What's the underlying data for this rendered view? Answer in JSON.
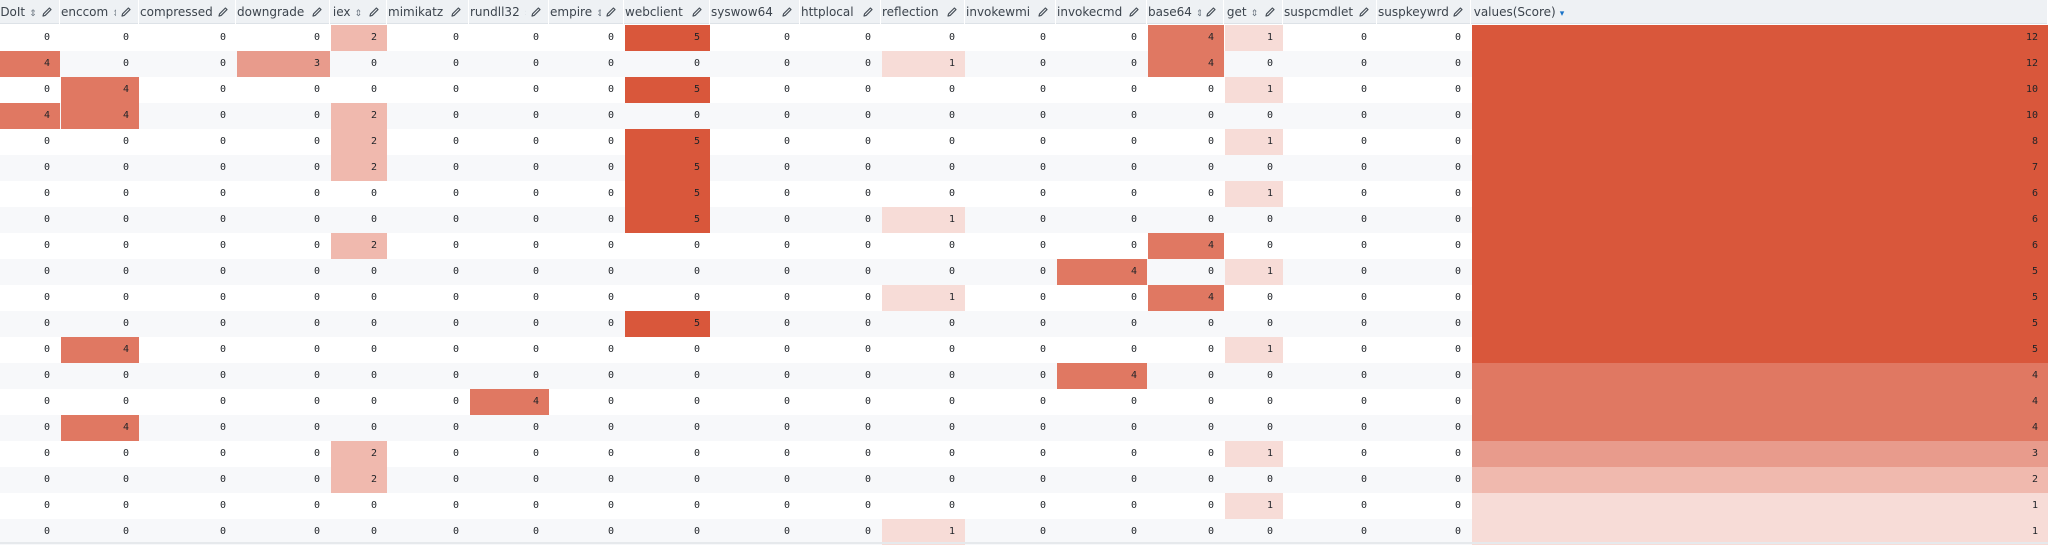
{
  "columns": [
    {
      "label": "DoIt",
      "sort": "⇕"
    },
    {
      "label": "enccom",
      "sort": "⇕"
    },
    {
      "label": "compressed",
      "sort": "⇕"
    },
    {
      "label": "downgrade",
      "sort": "⇕"
    },
    {
      "label": "iex",
      "sort": "⇕"
    },
    {
      "label": "mimikatz",
      "sort": "⇕"
    },
    {
      "label": "rundll32",
      "sort": "⇕"
    },
    {
      "label": "empire",
      "sort": "⇕"
    },
    {
      "label": "webclient",
      "sort": "⇕"
    },
    {
      "label": "syswow64",
      "sort": "⇕"
    },
    {
      "label": "httplocal",
      "sort": "⇕"
    },
    {
      "label": "reflection",
      "sort": "⇕"
    },
    {
      "label": "invokewmi",
      "sort": "⇕"
    },
    {
      "label": "invokecmd",
      "sort": "⇕"
    },
    {
      "label": "base64",
      "sort": "⇕"
    },
    {
      "label": "get",
      "sort": "⇕"
    },
    {
      "label": "suspcmdlet",
      "sort": "⇕"
    },
    {
      "label": "suspkeywrd",
      "sort": "⇕"
    },
    {
      "label": "values(Score)",
      "sort": "▾",
      "sorted": true
    }
  ],
  "rows": [
    [
      "0",
      "0",
      "0",
      "0",
      "2",
      "0",
      "0",
      "0",
      "5",
      "0",
      "0",
      "0",
      "0",
      "0",
      "4",
      "1",
      "0",
      "0",
      "12"
    ],
    [
      "4",
      "0",
      "0",
      "3",
      "0",
      "0",
      "0",
      "0",
      "0",
      "0",
      "0",
      "1",
      "0",
      "0",
      "4",
      "0",
      "0",
      "0",
      "12"
    ],
    [
      "0",
      "4",
      "0",
      "0",
      "0",
      "0",
      "0",
      "0",
      "5",
      "0",
      "0",
      "0",
      "0",
      "0",
      "0",
      "1",
      "0",
      "0",
      "10"
    ],
    [
      "4",
      "4",
      "0",
      "0",
      "2",
      "0",
      "0",
      "0",
      "0",
      "0",
      "0",
      "0",
      "0",
      "0",
      "0",
      "0",
      "0",
      "0",
      "10"
    ],
    [
      "0",
      "0",
      "0",
      "0",
      "2",
      "0",
      "0",
      "0",
      "5",
      "0",
      "0",
      "0",
      "0",
      "0",
      "0",
      "1",
      "0",
      "0",
      "8"
    ],
    [
      "0",
      "0",
      "0",
      "0",
      "2",
      "0",
      "0",
      "0",
      "5",
      "0",
      "0",
      "0",
      "0",
      "0",
      "0",
      "0",
      "0",
      "0",
      "7"
    ],
    [
      "0",
      "0",
      "0",
      "0",
      "0",
      "0",
      "0",
      "0",
      "5",
      "0",
      "0",
      "0",
      "0",
      "0",
      "0",
      "1",
      "0",
      "0",
      "6"
    ],
    [
      "0",
      "0",
      "0",
      "0",
      "0",
      "0",
      "0",
      "0",
      "5",
      "0",
      "0",
      "1",
      "0",
      "0",
      "0",
      "0",
      "0",
      "0",
      "6"
    ],
    [
      "0",
      "0",
      "0",
      "0",
      "2",
      "0",
      "0",
      "0",
      "0",
      "0",
      "0",
      "0",
      "0",
      "0",
      "4",
      "0",
      "0",
      "0",
      "6"
    ],
    [
      "0",
      "0",
      "0",
      "0",
      "0",
      "0",
      "0",
      "0",
      "0",
      "0",
      "0",
      "0",
      "0",
      "4",
      "0",
      "1",
      "0",
      "0",
      "5"
    ],
    [
      "0",
      "0",
      "0",
      "0",
      "0",
      "0",
      "0",
      "0",
      "0",
      "0",
      "0",
      "1",
      "0",
      "0",
      "4",
      "0",
      "0",
      "0",
      "5"
    ],
    [
      "0",
      "0",
      "0",
      "0",
      "0",
      "0",
      "0",
      "0",
      "5",
      "0",
      "0",
      "0",
      "0",
      "0",
      "0",
      "0",
      "0",
      "0",
      "5"
    ],
    [
      "0",
      "4",
      "0",
      "0",
      "0",
      "0",
      "0",
      "0",
      "0",
      "0",
      "0",
      "0",
      "0",
      "0",
      "0",
      "1",
      "0",
      "0",
      "5"
    ],
    [
      "0",
      "0",
      "0",
      "0",
      "0",
      "0",
      "0",
      "0",
      "0",
      "0",
      "0",
      "0",
      "0",
      "4",
      "0",
      "0",
      "0",
      "0",
      "4"
    ],
    [
      "0",
      "0",
      "0",
      "0",
      "0",
      "0",
      "4",
      "0",
      "0",
      "0",
      "0",
      "0",
      "0",
      "0",
      "0",
      "0",
      "0",
      "0",
      "4"
    ],
    [
      "0",
      "4",
      "0",
      "0",
      "0",
      "0",
      "0",
      "0",
      "0",
      "0",
      "0",
      "0",
      "0",
      "0",
      "0",
      "0",
      "0",
      "0",
      "4"
    ],
    [
      "0",
      "0",
      "0",
      "0",
      "2",
      "0",
      "0",
      "0",
      "0",
      "0",
      "0",
      "0",
      "0",
      "0",
      "0",
      "1",
      "0",
      "0",
      "3"
    ],
    [
      "0",
      "0",
      "0",
      "0",
      "2",
      "0",
      "0",
      "0",
      "0",
      "0",
      "0",
      "0",
      "0",
      "0",
      "0",
      "0",
      "0",
      "0",
      "2"
    ],
    [
      "0",
      "0",
      "0",
      "0",
      "0",
      "0",
      "0",
      "0",
      "0",
      "0",
      "0",
      "0",
      "0",
      "0",
      "0",
      "1",
      "0",
      "0",
      "1"
    ],
    [
      "0",
      "0",
      "0",
      "0",
      "0",
      "0",
      "0",
      "0",
      "0",
      "0",
      "0",
      "1",
      "0",
      "0",
      "0",
      "0",
      "0",
      "0",
      "1"
    ]
  ],
  "icons": {
    "edit": "pencil-icon",
    "sort": "sort-icon"
  },
  "colors": {
    "header_bg": "#eef1f4",
    "heat_1": "#f7dcd7",
    "heat_2": "#f0b9ae",
    "heat_3": "#e89b8c",
    "heat_4": "#e07862",
    "heat_5": "#d9573b"
  }
}
